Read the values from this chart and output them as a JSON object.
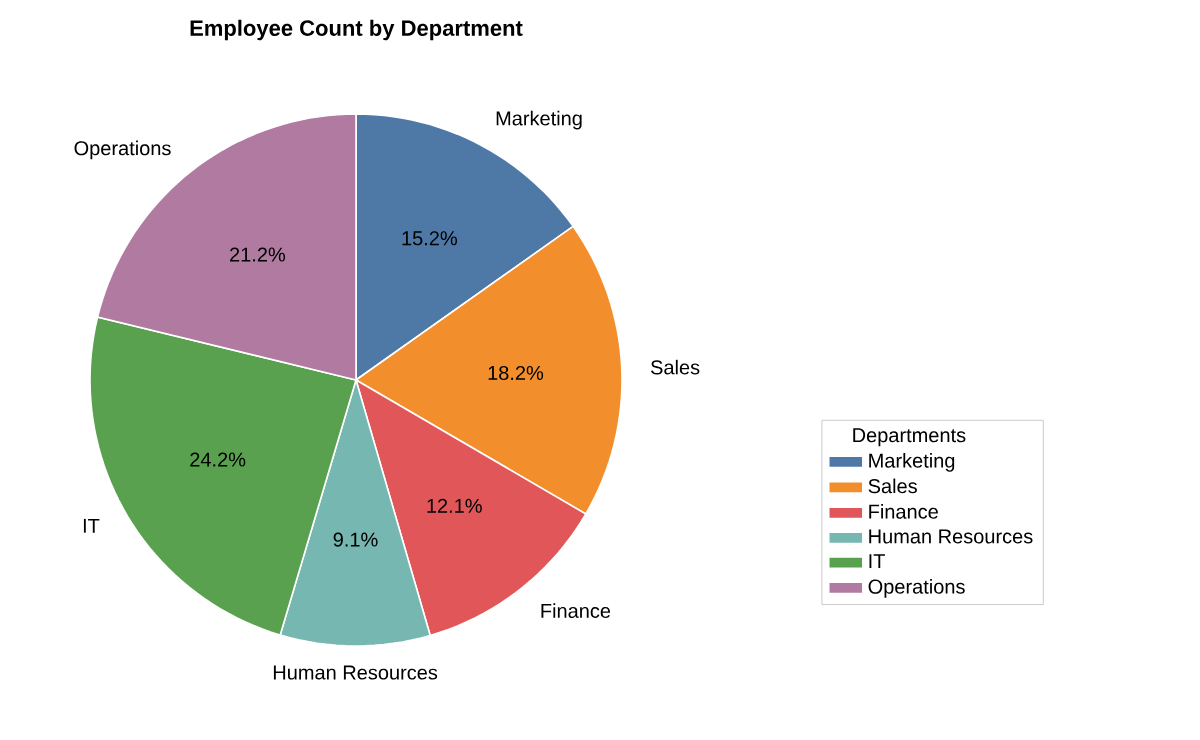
{
  "chart_data": {
    "type": "pie",
    "title": "Employee Count by Department",
    "legend_title": "Departments",
    "categories": [
      "Marketing",
      "Sales",
      "Finance",
      "Human Resources",
      "IT",
      "Operations"
    ],
    "values": [
      15.2,
      18.2,
      12.1,
      9.1,
      24.2,
      21.2
    ],
    "value_labels": [
      "15.2%",
      "18.2%",
      "12.1%",
      "9.1%",
      "24.2%",
      "21.2%"
    ],
    "colors": [
      "#4e79a7",
      "#f28e2b",
      "#e15759",
      "#76b7b2",
      "#59a14f",
      "#b07aa1"
    ],
    "legend": "right"
  }
}
